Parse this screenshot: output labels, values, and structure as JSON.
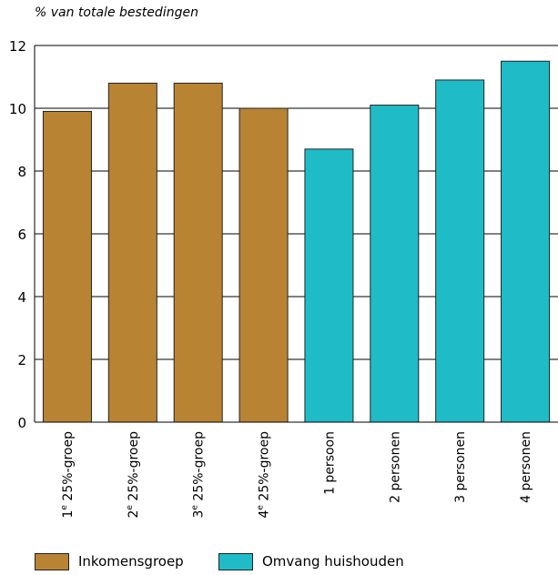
{
  "chart_data": {
    "type": "bar",
    "ylabel": "% van totale bestedingen",
    "xlabel": "",
    "title": "",
    "ylim": [
      0,
      12
    ],
    "yticks": [
      0,
      2,
      4,
      6,
      8,
      10,
      12
    ],
    "grid": true,
    "categories": [
      "1e 25%-groep",
      "2e 25%-groep",
      "3e 25%-groep",
      "4e 25%-groep",
      "1 persoon",
      "2 personen",
      "3 personen",
      "4 personen"
    ],
    "category_parts": [
      {
        "main": "1",
        "sup": "e",
        "rest": " 25%-groep"
      },
      {
        "main": "2",
        "sup": "e",
        "rest": " 25%-groep"
      },
      {
        "main": "3",
        "sup": "e",
        "rest": " 25%-groep"
      },
      {
        "main": "4",
        "sup": "e",
        "rest": " 25%-groep"
      },
      {
        "main": "1 persoon",
        "sup": "",
        "rest": ""
      },
      {
        "main": "2 personen",
        "sup": "",
        "rest": ""
      },
      {
        "main": "3 personen",
        "sup": "",
        "rest": ""
      },
      {
        "main": "4 personen",
        "sup": "",
        "rest": ""
      }
    ],
    "values": [
      9.9,
      10.8,
      10.8,
      10.0,
      8.7,
      10.1,
      10.9,
      11.5
    ],
    "groups": [
      0,
      0,
      0,
      0,
      1,
      1,
      1,
      1
    ],
    "series": [
      {
        "name": "Inkomensgroep",
        "color": "#b88434"
      },
      {
        "name": "Omvang huishouden",
        "color": "#1fbcc8"
      }
    ],
    "legend_position": "bottom"
  }
}
